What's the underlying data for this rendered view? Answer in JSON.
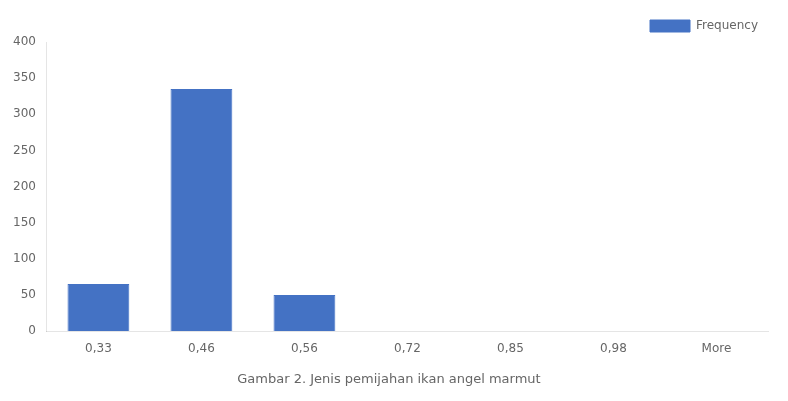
{
  "chart_data": {
    "type": "bar",
    "title": "Gambar 2. Jenis pemijahan ikan angel marmut",
    "categories": [
      "0,33",
      "0,46",
      "0,56",
      "0,72",
      "0,85",
      "0,98",
      "More"
    ],
    "series": [
      {
        "name": "Frequency",
        "color": "#4472C4",
        "values": [
          65,
          335,
          50,
          0,
          0,
          0,
          0
        ]
      }
    ],
    "ylim": [
      0,
      400
    ],
    "yticks": [
      0,
      50,
      100,
      150,
      200,
      250,
      300,
      350,
      400
    ],
    "grid": false,
    "legend": "upper right"
  }
}
